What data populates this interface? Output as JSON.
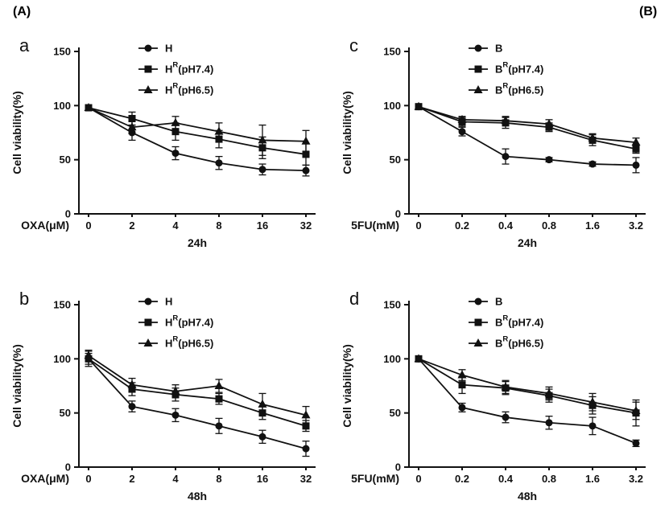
{
  "figure": {
    "panel_a_label": "(A)",
    "panel_b_label": "(B)",
    "line_color": "#111111",
    "background": "#ffffff"
  },
  "chart_data": [
    {
      "letter": "a",
      "type": "line",
      "title": "24h",
      "ylabel": "Cell viability(%)",
      "xprefix": "OXA(μM)",
      "categories": [
        "0",
        "2",
        "4",
        "8",
        "16",
        "32"
      ],
      "ylim": [
        0,
        150
      ],
      "yticks": [
        0,
        50,
        100,
        150
      ],
      "grid": false,
      "legend_position": "top-center",
      "series": [
        {
          "name": "H",
          "label_base": "H",
          "label_sup": "",
          "label_rest": "",
          "marker": "circle",
          "values": [
            98,
            75,
            56,
            47,
            41,
            40
          ],
          "errors": [
            2,
            7,
            6,
            6,
            5,
            5
          ]
        },
        {
          "name": "HR(pH7.4)",
          "label_base": "H",
          "label_sup": "R",
          "label_rest": "(pH7.4)",
          "marker": "square",
          "values": [
            98,
            88,
            76,
            69,
            61,
            55
          ],
          "errors": [
            2,
            6,
            8,
            8,
            10,
            10
          ]
        },
        {
          "name": "HR(pH6.5)",
          "label_base": "H",
          "label_sup": "R",
          "label_rest": "(pH6.5)",
          "marker": "triangle",
          "values": [
            98,
            80,
            84,
            76,
            68,
            67
          ],
          "errors": [
            2,
            6,
            6,
            8,
            14,
            10
          ]
        }
      ]
    },
    {
      "letter": "b",
      "type": "line",
      "title": "48h",
      "ylabel": "Cell viability(%)",
      "xprefix": "OXA(μM)",
      "categories": [
        "0",
        "2",
        "4",
        "8",
        "16",
        "32"
      ],
      "ylim": [
        0,
        150
      ],
      "yticks": [
        0,
        50,
        100,
        150
      ],
      "grid": false,
      "legend_position": "top-center",
      "series": [
        {
          "name": "H",
          "label_base": "H",
          "label_sup": "",
          "label_rest": "",
          "marker": "circle",
          "values": [
            100,
            56,
            48,
            38,
            28,
            17
          ],
          "errors": [
            7,
            5,
            6,
            7,
            6,
            7
          ]
        },
        {
          "name": "HR(pH7.4)",
          "label_base": "H",
          "label_sup": "R",
          "label_rest": "(pH7.4)",
          "marker": "square",
          "values": [
            100,
            72,
            67,
            63,
            50,
            38
          ],
          "errors": [
            5,
            6,
            6,
            5,
            6,
            5
          ]
        },
        {
          "name": "HR(pH6.5)",
          "label_base": "H",
          "label_sup": "R",
          "label_rest": "(pH6.5)",
          "marker": "triangle",
          "values": [
            103,
            76,
            70,
            75,
            58,
            48
          ],
          "errors": [
            5,
            6,
            6,
            6,
            10,
            8
          ]
        }
      ]
    },
    {
      "letter": "c",
      "type": "line",
      "title": "24h",
      "ylabel": "Cell viability(%)",
      "xprefix": "5FU(mM)",
      "categories": [
        "0",
        "0.2",
        "0.4",
        "0.8",
        "1.6",
        "3.2"
      ],
      "ylim": [
        0,
        150
      ],
      "yticks": [
        0,
        50,
        100,
        150
      ],
      "grid": false,
      "legend_position": "top-center",
      "series": [
        {
          "name": "B",
          "label_base": "B",
          "label_sup": "",
          "label_rest": "",
          "marker": "circle",
          "values": [
            99,
            76,
            53,
            50,
            46,
            45
          ],
          "errors": [
            2,
            4,
            7,
            2,
            2,
            7
          ]
        },
        {
          "name": "BR(pH7.4)",
          "label_base": "B",
          "label_sup": "R",
          "label_rest": "(pH7.4)",
          "marker": "square",
          "values": [
            99,
            85,
            84,
            80,
            68,
            60
          ],
          "errors": [
            2,
            4,
            5,
            4,
            5,
            4
          ]
        },
        {
          "name": "BR(pH6.5)",
          "label_base": "B",
          "label_sup": "R",
          "label_rest": "(pH6.5)",
          "marker": "triangle",
          "values": [
            99,
            87,
            86,
            83,
            70,
            66
          ],
          "errors": [
            2,
            3,
            4,
            4,
            4,
            4
          ]
        }
      ]
    },
    {
      "letter": "d",
      "type": "line",
      "title": "48h",
      "ylabel": "Cell viability(%)",
      "xprefix": "5FU(mM)",
      "categories": [
        "0",
        "0.2",
        "0.4",
        "0.8",
        "1.6",
        "3.2"
      ],
      "ylim": [
        0,
        150
      ],
      "yticks": [
        0,
        50,
        100,
        150
      ],
      "grid": false,
      "legend_position": "top-center",
      "series": [
        {
          "name": "B",
          "label_base": "B",
          "label_sup": "",
          "label_rest": "",
          "marker": "circle",
          "values": [
            100,
            55,
            46,
            41,
            38,
            22
          ],
          "errors": [
            2,
            4,
            5,
            6,
            8,
            3
          ]
        },
        {
          "name": "BR(pH7.4)",
          "label_base": "B",
          "label_sup": "R",
          "label_rest": "(pH7.4)",
          "marker": "square",
          "values": [
            100,
            76,
            73,
            66,
            57,
            50
          ],
          "errors": [
            2,
            8,
            6,
            6,
            8,
            12
          ]
        },
        {
          "name": "BR(pH6.5)",
          "label_base": "B",
          "label_sup": "R",
          "label_rest": "(pH6.5)",
          "marker": "triangle",
          "values": [
            100,
            85,
            74,
            68,
            60,
            52
          ],
          "errors": [
            2,
            5,
            6,
            6,
            8,
            8
          ]
        }
      ]
    }
  ]
}
